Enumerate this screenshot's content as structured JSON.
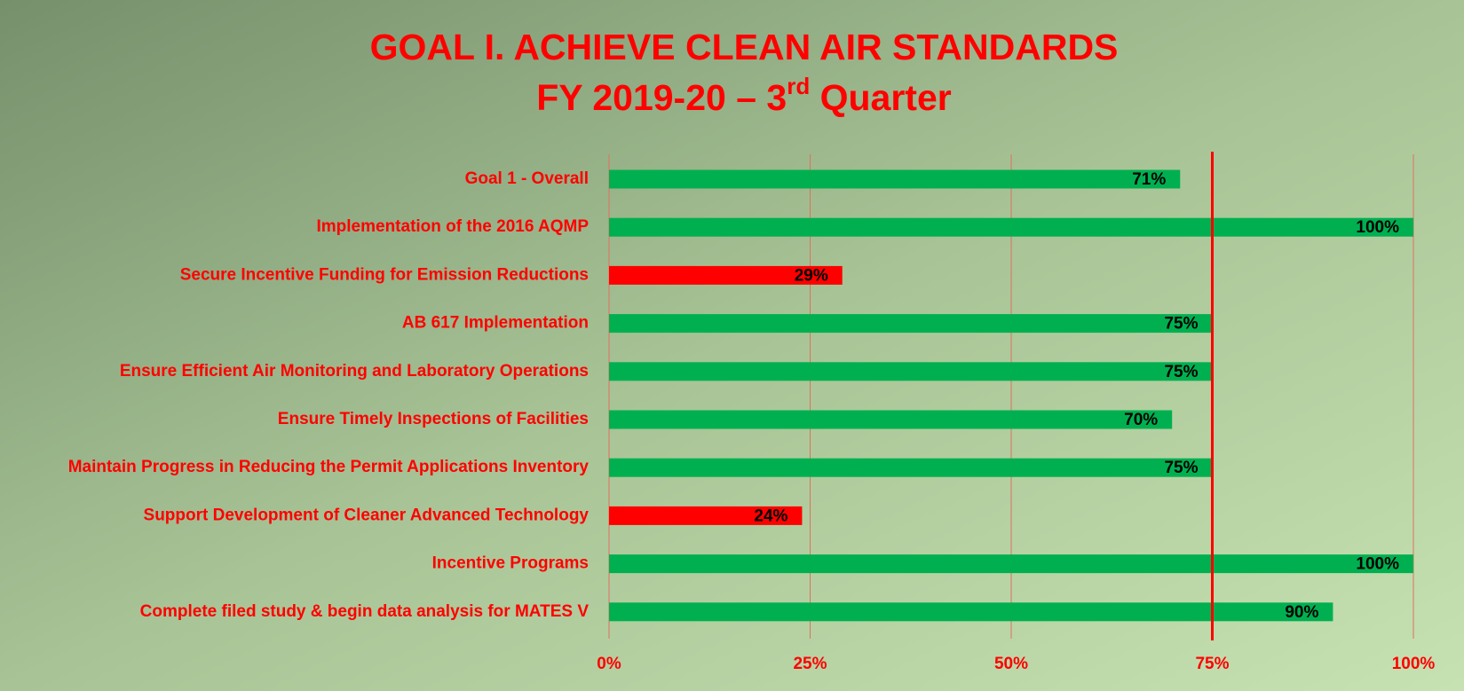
{
  "chart_data": {
    "type": "barh",
    "title": "GOAL I. ACHIEVE CLEAN AIR STANDARDS",
    "subtitle": [
      "FY 2019-20 – 3",
      "rd",
      " Quarter"
    ],
    "categories": [
      "Goal 1 - Overall",
      "Implementation of the 2016 AQMP",
      "Secure Incentive Funding for Emission Reductions",
      "AB 617 Implementation",
      "Ensure Efficient Air Monitoring and Laboratory Operations",
      "Ensure Timely Inspections of Facilities",
      "Maintain Progress in Reducing the Permit Applications Inventory",
      "Support Development of Cleaner Advanced Technology",
      "Incentive Programs",
      "Complete filed study & begin data analysis for MATES V"
    ],
    "values": [
      71,
      100,
      29,
      75,
      75,
      70,
      75,
      24,
      100,
      90
    ],
    "value_labels": [
      "71%",
      "100%",
      "29%",
      "75%",
      "75%",
      "70%",
      "75%",
      "24%",
      "100%",
      "90%"
    ],
    "colors": [
      "#00b050",
      "#00b050",
      "#ff0000",
      "#00b050",
      "#00b050",
      "#00b050",
      "#00b050",
      "#ff0000",
      "#00b050",
      "#00b050"
    ],
    "xlim": [
      0,
      100
    ],
    "xticks": [
      {
        "value": 0,
        "label": "0%"
      },
      {
        "value": 25,
        "label": "25%"
      },
      {
        "value": 50,
        "label": "50%"
      },
      {
        "value": 75,
        "label": "75%"
      },
      {
        "value": 100,
        "label": "100%"
      }
    ],
    "grid": true,
    "reference_line": {
      "value": 75,
      "color": "#ff0000"
    }
  }
}
